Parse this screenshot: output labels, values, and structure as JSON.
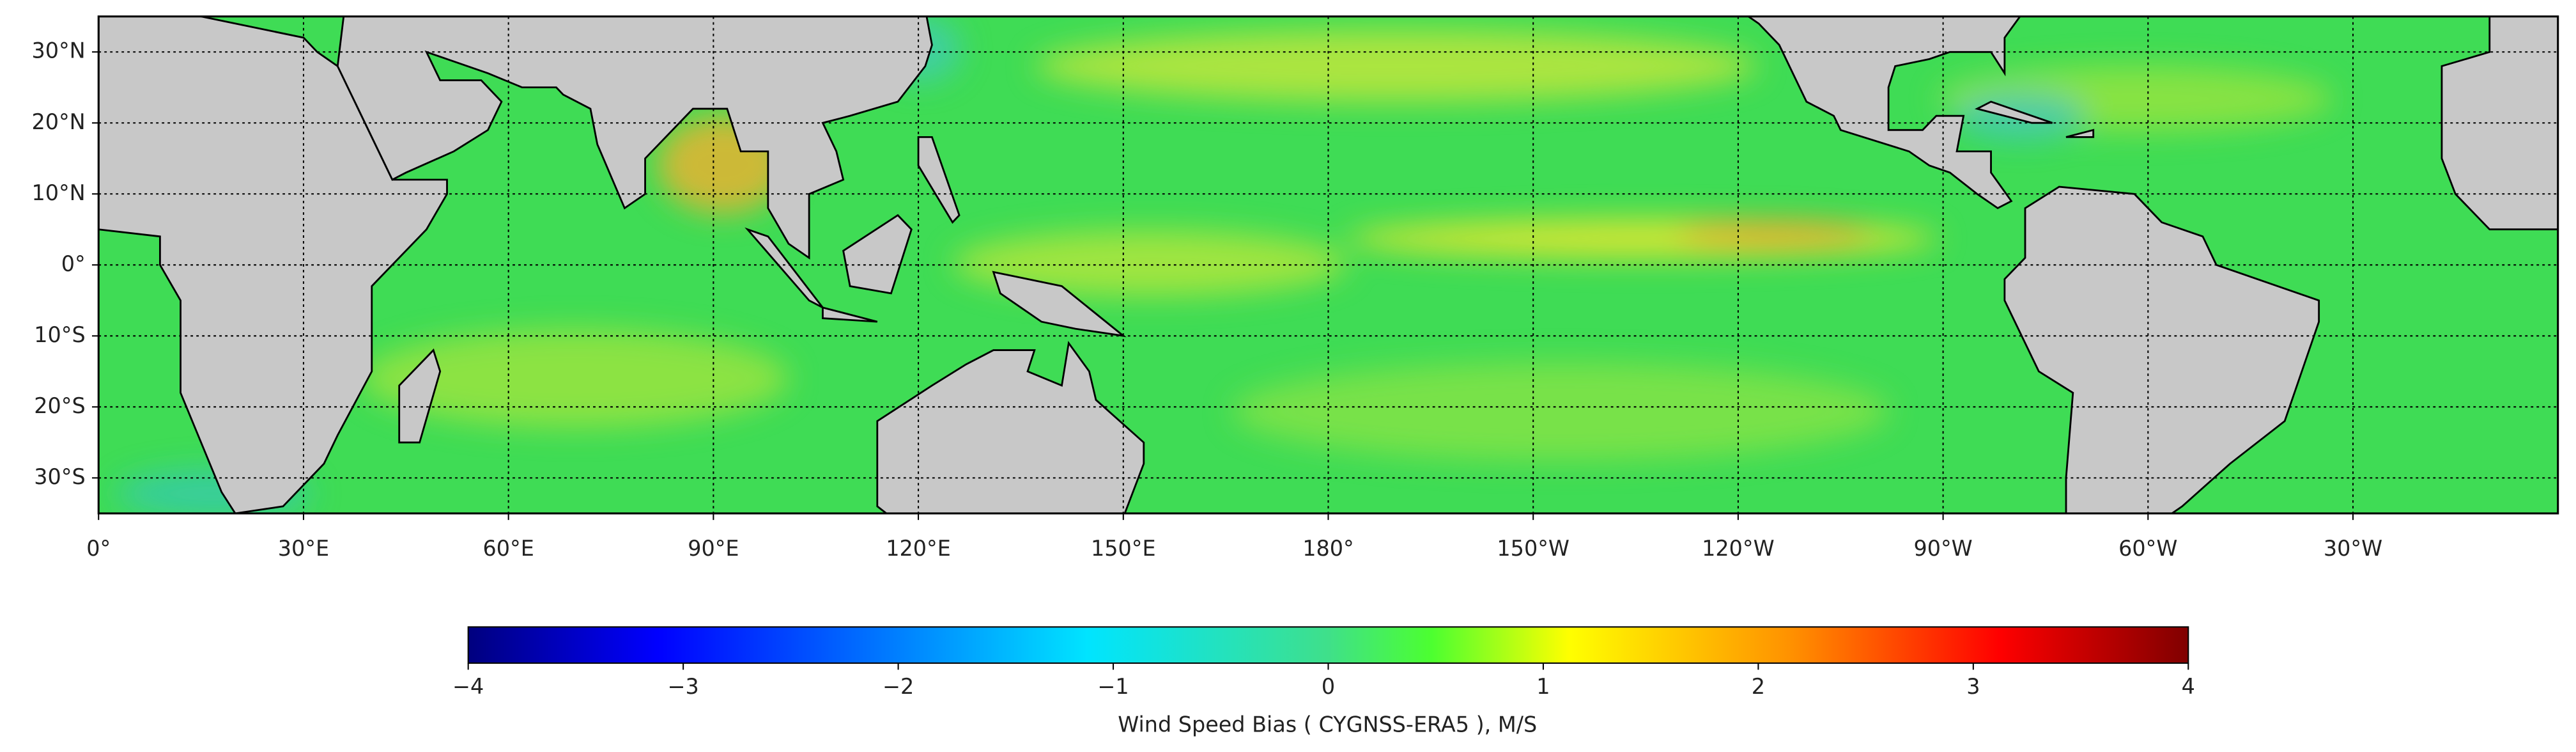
{
  "map": {
    "lon_range": [
      0,
      360
    ],
    "lat_range": [
      -35,
      35
    ],
    "grid": true,
    "lon_ticks": [
      {
        "value": 0,
        "label": "0°"
      },
      {
        "value": 30,
        "label": "30°E"
      },
      {
        "value": 60,
        "label": "60°E"
      },
      {
        "value": 90,
        "label": "90°E"
      },
      {
        "value": 120,
        "label": "120°E"
      },
      {
        "value": 150,
        "label": "150°E"
      },
      {
        "value": 180,
        "label": "180°"
      },
      {
        "value": 210,
        "label": "150°W"
      },
      {
        "value": 240,
        "label": "120°W"
      },
      {
        "value": 270,
        "label": "90°W"
      },
      {
        "value": 300,
        "label": "60°W"
      },
      {
        "value": 330,
        "label": "30°W"
      }
    ],
    "lat_ticks": [
      {
        "value": 30,
        "label": "30°N"
      },
      {
        "value": 20,
        "label": "20°N"
      },
      {
        "value": 10,
        "label": "10°N"
      },
      {
        "value": 0,
        "label": "0°"
      },
      {
        "value": -10,
        "label": "10°S"
      },
      {
        "value": -20,
        "label": "20°S"
      },
      {
        "value": -30,
        "label": "30°S"
      }
    ]
  },
  "colorbar": {
    "colormap": "jet",
    "lim": [
      -4,
      4
    ],
    "ticks": [
      {
        "value": -4,
        "label": "−4"
      },
      {
        "value": -3,
        "label": "−3"
      },
      {
        "value": -2,
        "label": "−2"
      },
      {
        "value": -1,
        "label": "−1"
      },
      0,
      1,
      2,
      3,
      4
    ],
    "label": "Wind Speed Bias ( CYGNSS-ERA5 ), M/S"
  }
}
